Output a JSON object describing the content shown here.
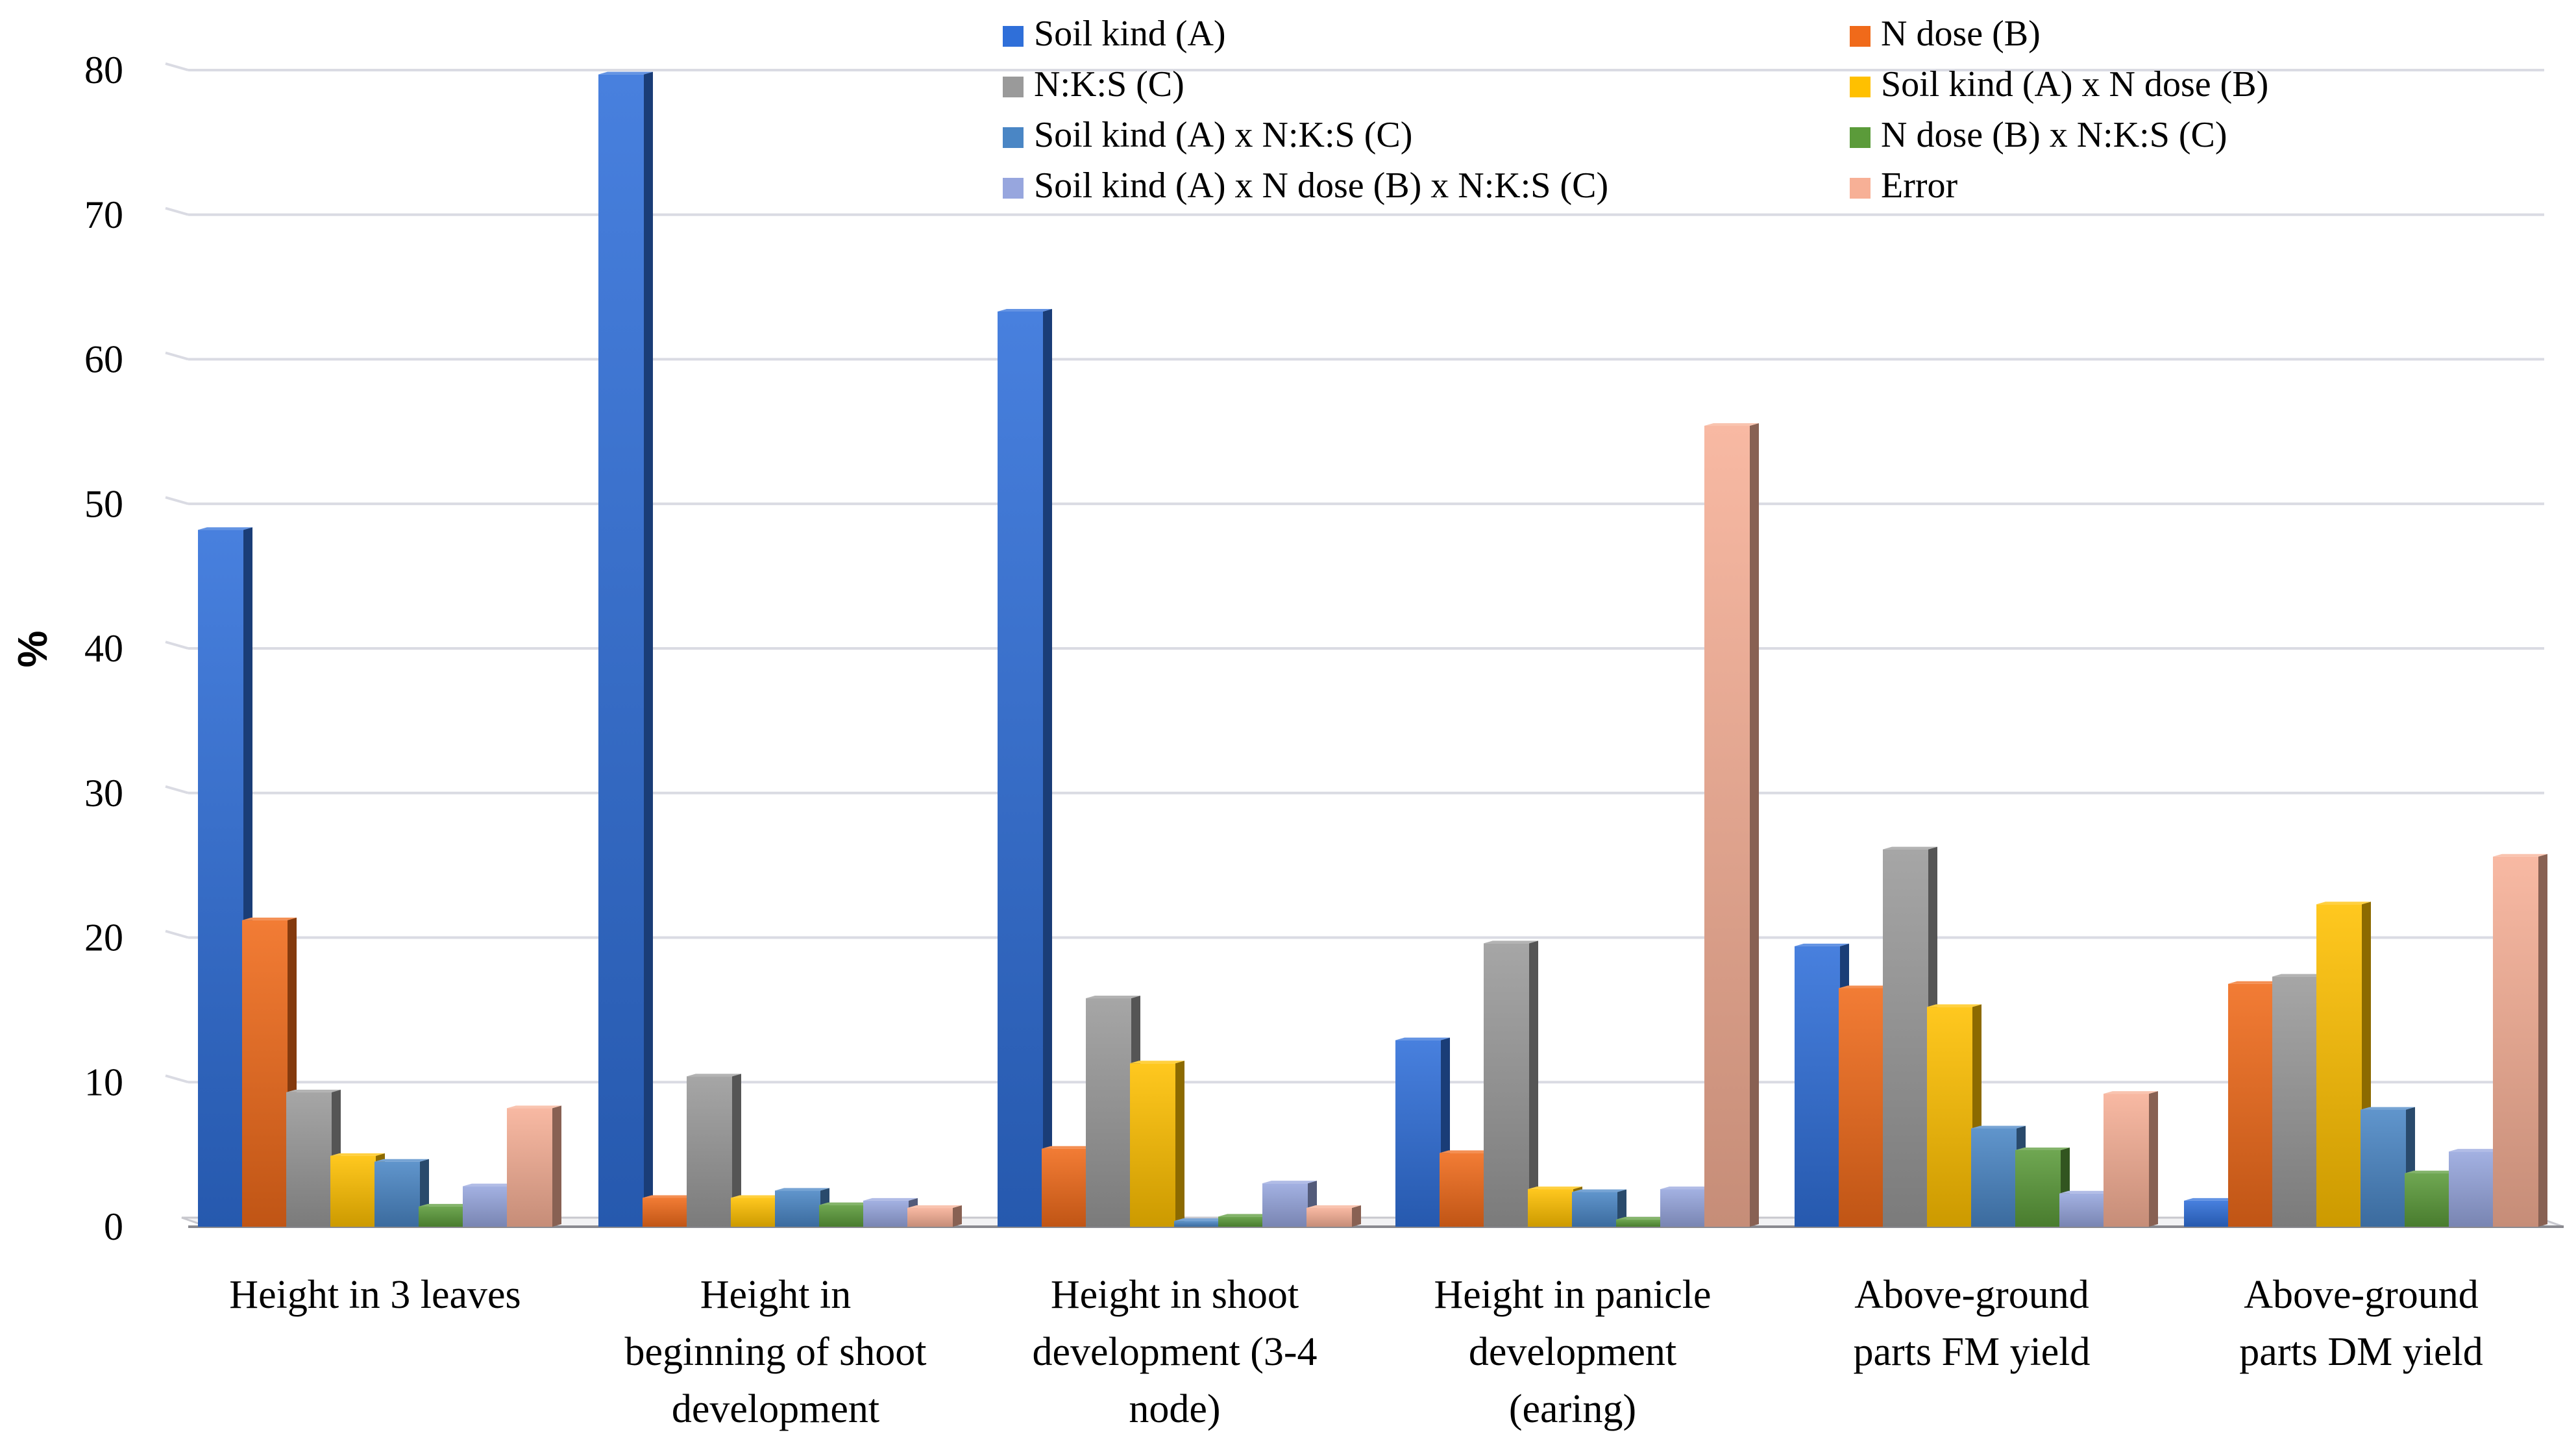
{
  "chart_data": {
    "type": "bar",
    "title": "",
    "xlabel": "",
    "ylabel": "%",
    "ylim": [
      0,
      80
    ],
    "yticks": [
      "0",
      "10",
      "20",
      "30",
      "40",
      "50",
      "60",
      "70",
      "80"
    ],
    "grid": true,
    "legend_position": "top-right",
    "categories": [
      [
        "Height in 3 leaves"
      ],
      [
        "Height in",
        "beginning of shoot",
        "development"
      ],
      [
        "Height in shoot",
        "development (3-4",
        "node)"
      ],
      [
        "Height in panicle",
        "development",
        "(earing)"
      ],
      [
        "Above-ground",
        "parts FM yield"
      ],
      [
        "Above-ground",
        "parts DM yield"
      ]
    ],
    "series": [
      {
        "name": "Soil kind (A)",
        "color": "#2F6FD9",
        "values": [
          48.2,
          79.7,
          63.3,
          12.9,
          19.4,
          1.8
        ]
      },
      {
        "name": "N dose (B)",
        "color": "#F06A1A",
        "values": [
          21.2,
          2.0,
          5.4,
          5.1,
          16.5,
          16.8
        ]
      },
      {
        "name": "N:K:S (C)",
        "color": "#9A9A9A",
        "values": [
          9.3,
          10.4,
          15.8,
          19.6,
          26.1,
          17.3
        ]
      },
      {
        "name": "Soil kind (A) x N dose (B)",
        "color": "#FFC000",
        "values": [
          4.9,
          2.0,
          11.3,
          2.6,
          15.2,
          22.3
        ]
      },
      {
        "name": "Soil kind (A) x N:K:S (C)",
        "color": "#4A86C5",
        "values": [
          4.5,
          2.5,
          0.4,
          2.4,
          6.8,
          8.1
        ]
      },
      {
        "name": "N dose (B) x N:K:S (C)",
        "color": "#5B9B3A",
        "values": [
          1.4,
          1.5,
          0.7,
          0.5,
          5.3,
          3.7
        ]
      },
      {
        "name": "Soil kind (A) x N dose (B) x N:K:S (C)",
        "color": "#97A6DE",
        "values": [
          2.8,
          1.8,
          3.0,
          2.6,
          2.3,
          5.2
        ]
      },
      {
        "name": "Error",
        "color": "#F7B096",
        "values": [
          8.2,
          1.3,
          1.3,
          55.4,
          9.2,
          25.6
        ]
      }
    ]
  }
}
